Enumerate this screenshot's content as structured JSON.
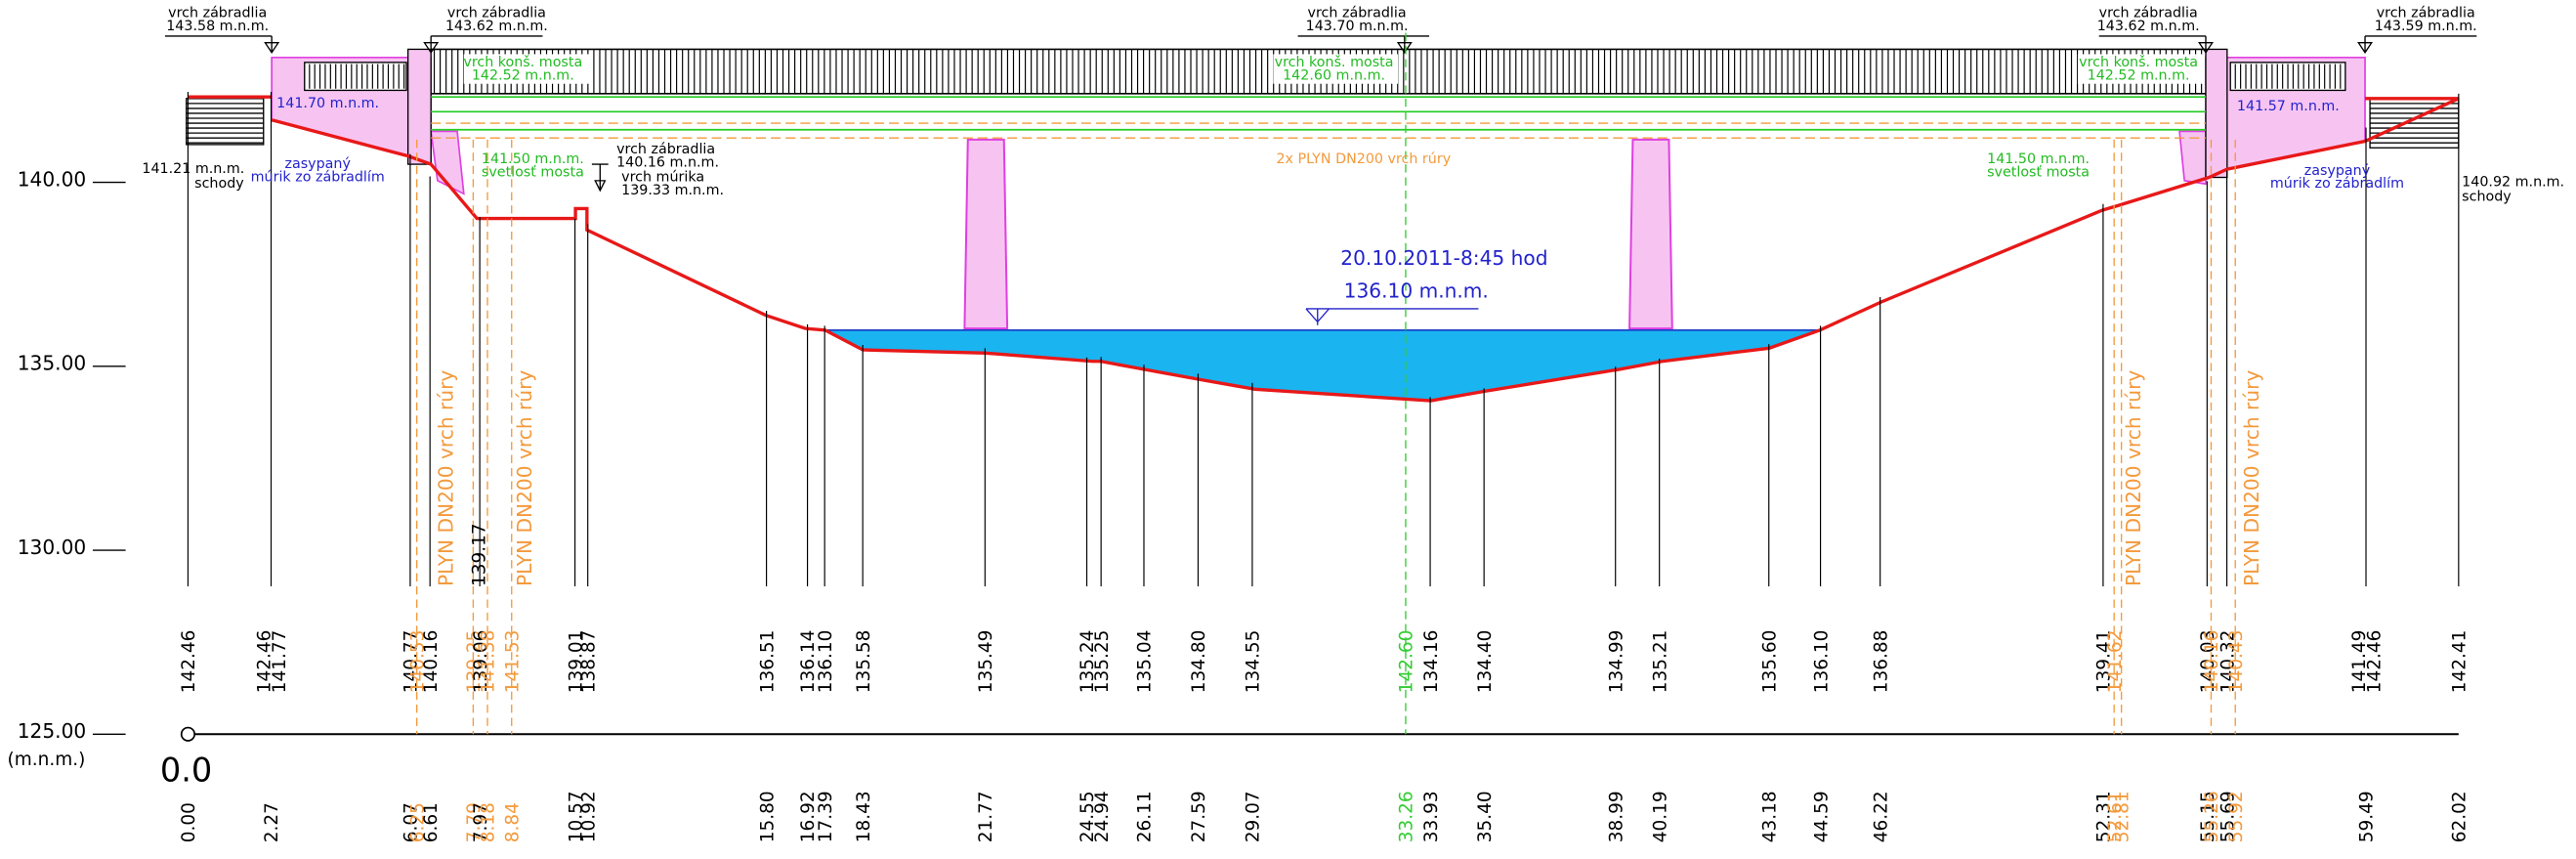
{
  "axis": {
    "levels": [
      "140.00",
      "135.00",
      "130.00",
      "125.00"
    ],
    "unit": "(m.n.m.)",
    "origin": "0.0"
  },
  "stations": [
    {
      "station": "0.00",
      "elevations": [
        "142.46"
      ],
      "color": "#000000"
    },
    {
      "station": "2.27",
      "elevations": [
        "142.46",
        "141.77"
      ],
      "color": "#000000"
    },
    {
      "station": "6.07",
      "elevations": [
        "140.77"
      ],
      "color": "#000000"
    },
    {
      "station": "6.25",
      "elevations": [
        "140.53"
      ],
      "color": "#f39a3c"
    },
    {
      "station": "6.61",
      "elevations": [
        "140.16"
      ],
      "color": "#000000"
    },
    {
      "station": "7.79",
      "elevations": [
        "139.25"
      ],
      "color": "#f39a3c"
    },
    {
      "station": "7.97",
      "elevations": [
        "139.06"
      ],
      "color": "#000000"
    },
    {
      "station": "8.18",
      "elevations": [
        "141.38"
      ],
      "color": "#f39a3c"
    },
    {
      "station": "8.84",
      "elevations": [
        "141.53"
      ],
      "color": "#f39a3c"
    },
    {
      "station": "10.57",
      "elevations": [
        "139.01"
      ],
      "color": "#000000"
    },
    {
      "station": "10.92",
      "elevations": [
        "138.87"
      ],
      "color": "#000000"
    },
    {
      "station": "15.80",
      "elevations": [
        "136.51"
      ],
      "color": "#000000"
    },
    {
      "station": "16.92",
      "elevations": [
        "136.14"
      ],
      "color": "#000000"
    },
    {
      "station": "17.39",
      "elevations": [
        "136.10"
      ],
      "color": "#000000"
    },
    {
      "station": "18.43",
      "elevations": [
        "135.58"
      ],
      "color": "#000000"
    },
    {
      "station": "21.77",
      "elevations": [
        "135.49"
      ],
      "color": "#000000"
    },
    {
      "station": "24.55",
      "elevations": [
        "135.24"
      ],
      "color": "#000000"
    },
    {
      "station": "24.94",
      "elevations": [
        "135.25"
      ],
      "color": "#000000"
    },
    {
      "station": "26.11",
      "elevations": [
        "135.04"
      ],
      "color": "#000000"
    },
    {
      "station": "27.59",
      "elevations": [
        "134.80"
      ],
      "color": "#000000"
    },
    {
      "station": "29.07",
      "elevations": [
        "134.55"
      ],
      "color": "#000000"
    },
    {
      "station": "33.26",
      "elevations": [
        "142.60"
      ],
      "color": "#33cc33"
    },
    {
      "station": "33.93",
      "elevations": [
        "134.16"
      ],
      "color": "#000000"
    },
    {
      "station": "35.40",
      "elevations": [
        "134.40"
      ],
      "color": "#000000"
    },
    {
      "station": "38.99",
      "elevations": [
        "134.99"
      ],
      "color": "#000000"
    },
    {
      "station": "40.19",
      "elevations": [
        "135.21"
      ],
      "color": "#000000"
    },
    {
      "station": "43.18",
      "elevations": [
        "135.60"
      ],
      "color": "#000000"
    },
    {
      "station": "44.59",
      "elevations": [
        "136.10"
      ],
      "color": "#000000"
    },
    {
      "station": "46.22",
      "elevations": [
        "136.88"
      ],
      "color": "#000000"
    },
    {
      "station": "52.31",
      "elevations": [
        "139.41"
      ],
      "color": "#000000"
    },
    {
      "station": "52.61",
      "elevations": [
        "141.62"
      ],
      "color": "#f39a3c"
    },
    {
      "station": "52.81",
      "elevations": [],
      "color": "#f39a3c"
    },
    {
      "station": "55.15",
      "elevations": [
        "140.03"
      ],
      "color": "#000000"
    },
    {
      "station": "55.26",
      "elevations": [
        "140.16"
      ],
      "color": "#f39a3c"
    },
    {
      "station": "55.69",
      "elevations": [
        "140.32"
      ],
      "color": "#000000"
    },
    {
      "station": "55.92",
      "elevations": [
        "140.43"
      ],
      "color": "#f39a3c"
    },
    {
      "station": "59.49",
      "elevations": [
        "141.49",
        "142.46"
      ],
      "color": "#000000"
    },
    {
      "station": "62.02",
      "elevations": [
        "142.41"
      ],
      "color": "#000000"
    }
  ],
  "annotations": [
    {
      "lines": [
        "vrch zábradlia",
        "143.58 m.n.m."
      ],
      "color": "#000000"
    },
    {
      "lines": [
        "vrch zábradlia",
        "143.62 m.n.m."
      ],
      "color": "#000000"
    },
    {
      "lines": [
        "vrch zábradlia",
        "143.70 m.n.m."
      ],
      "color": "#000000"
    },
    {
      "lines": [
        "vrch zábradlia",
        "143.62 m.n.m."
      ],
      "color": "#000000"
    },
    {
      "lines": [
        "vrch zábradlia",
        "143.59 m.n.m."
      ],
      "color": "#000000"
    },
    {
      "lines": [
        "vrch konš. mosta",
        "142.52 m.n.m."
      ],
      "color": "#22bb22"
    },
    {
      "lines": [
        "vrch konš. mosta",
        "142.60 m.n.m."
      ],
      "color": "#22bb22"
    },
    {
      "lines": [
        "vrch konš. mosta",
        "142.52 m.n.m."
      ],
      "color": "#22bb22"
    },
    {
      "lines": [
        "141.70 m.n.m."
      ],
      "color": "#2222cc"
    },
    {
      "lines": [
        "141.57 m.n.m."
      ],
      "color": "#2222cc"
    },
    {
      "lines": [
        "zasypaný",
        "múrik zo zábradlím"
      ],
      "color": "#2222cc"
    },
    {
      "lines": [
        "zasypaný",
        "múrik zo zábradlím"
      ],
      "color": "#2222cc"
    },
    {
      "lines": [
        "141.21 m.n.m.",
        "schody"
      ],
      "color": "#000000"
    },
    {
      "lines": [
        "140.92 m.n.m.",
        "schody"
      ],
      "color": "#000000"
    },
    {
      "lines": [
        "141.50 m.n.m.",
        "svetlosť mosta"
      ],
      "color": "#22bb22"
    },
    {
      "lines": [
        "141.50 m.n.m.",
        "svetlosť mosta"
      ],
      "color": "#22bb22"
    },
    {
      "lines": [
        "vrch zábradlia",
        "140.16 m.n.m."
      ],
      "color": "#000000"
    },
    {
      "lines": [
        "vrch múrika",
        "139.33 m.n.m."
      ],
      "color": "#000000"
    },
    {
      "lines": [
        "2x PLYN DN200 vrch rúry"
      ],
      "color": "#f39a3c"
    },
    {
      "lines": [
        "20.10.2011-8:45 hod"
      ],
      "color": "#2222cc"
    },
    {
      "lines": [
        "136.10 m.n.m."
      ],
      "color": "#2222cc"
    },
    {
      "lines": [
        "PLYN DN200 vrch rúry"
      ],
      "color": "#f39a3c"
    },
    {
      "lines": [
        "PLYN DN200 vrch rúry"
      ],
      "color": "#f39a3c"
    },
    {
      "lines": [
        "PLYN DN200 vrch rúry"
      ],
      "color": "#f39a3c"
    },
    {
      "lines": [
        "PLYN DN200 vrch rúry"
      ],
      "color": "#f39a3c"
    },
    {
      "lines": [
        "139.17"
      ],
      "color": "#000000"
    }
  ]
}
